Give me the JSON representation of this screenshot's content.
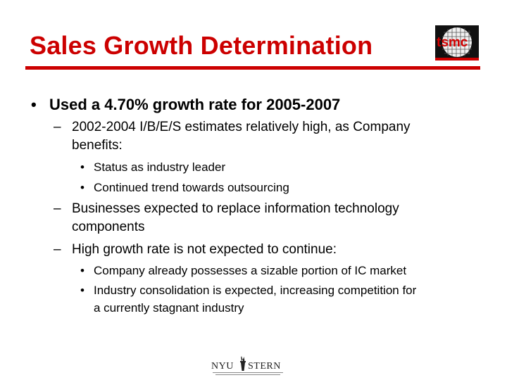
{
  "title": "Sales Growth Determination",
  "logo_text": "tsmc",
  "footer_logo": {
    "left": "NYU",
    "right": "STERN"
  },
  "bullets": [
    {
      "level": 1,
      "marker": "•",
      "text": "Used a 4.70% growth rate for 2005-2007"
    },
    {
      "level": 2,
      "marker": "–",
      "text": "2002-2004 I/B/E/S estimates relatively high, as Company",
      "cont": "benefits:"
    },
    {
      "level": 3,
      "marker": "•",
      "text": "Status as industry leader"
    },
    {
      "level": 3,
      "marker": "•",
      "text": "Continued trend towards outsourcing"
    },
    {
      "level": 2,
      "marker": "–",
      "text": "Businesses expected to replace information technology",
      "cont": "components"
    },
    {
      "level": 2,
      "marker": "–",
      "text": "High growth rate is not expected to continue:"
    },
    {
      "level": 3,
      "marker": "•",
      "text": "Company already possesses a sizable portion of IC market"
    },
    {
      "level": 3,
      "marker": "•",
      "text": "Industry consolidation is expected, increasing competition for",
      "cont": "a currently stagnant industry"
    }
  ],
  "colors": {
    "accent": "#cc0000",
    "text": "#000000"
  }
}
